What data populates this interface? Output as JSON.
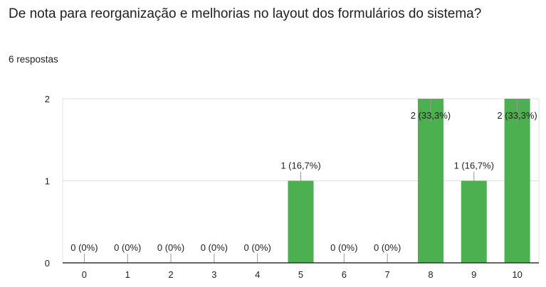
{
  "question": {
    "title": "De nota para reorganização e melhorias no layout dos formulários do sistema?",
    "responses": "6 respostas"
  },
  "colors": {
    "bar": "#4caf50",
    "grid": "#e0e0e0",
    "axis": "#333333",
    "connector": "#999999"
  },
  "chart_data": {
    "type": "bar",
    "categories": [
      "0",
      "1",
      "2",
      "3",
      "4",
      "5",
      "6",
      "7",
      "8",
      "9",
      "10"
    ],
    "values": [
      0,
      0,
      0,
      0,
      0,
      1,
      0,
      0,
      2,
      1,
      2
    ],
    "data_labels": [
      "0 (0%)",
      "0 (0%)",
      "0 (0%)",
      "0 (0%)",
      "0 (0%)",
      "1 (16,7%)",
      "0 (0%)",
      "0 (0%)",
      "2 (33,3%)",
      "1 (16,7%)",
      "2 (33,3%)"
    ],
    "y_ticks": [
      0,
      1,
      2
    ],
    "ylim": [
      0,
      2
    ],
    "grid": true,
    "legend": "none"
  }
}
